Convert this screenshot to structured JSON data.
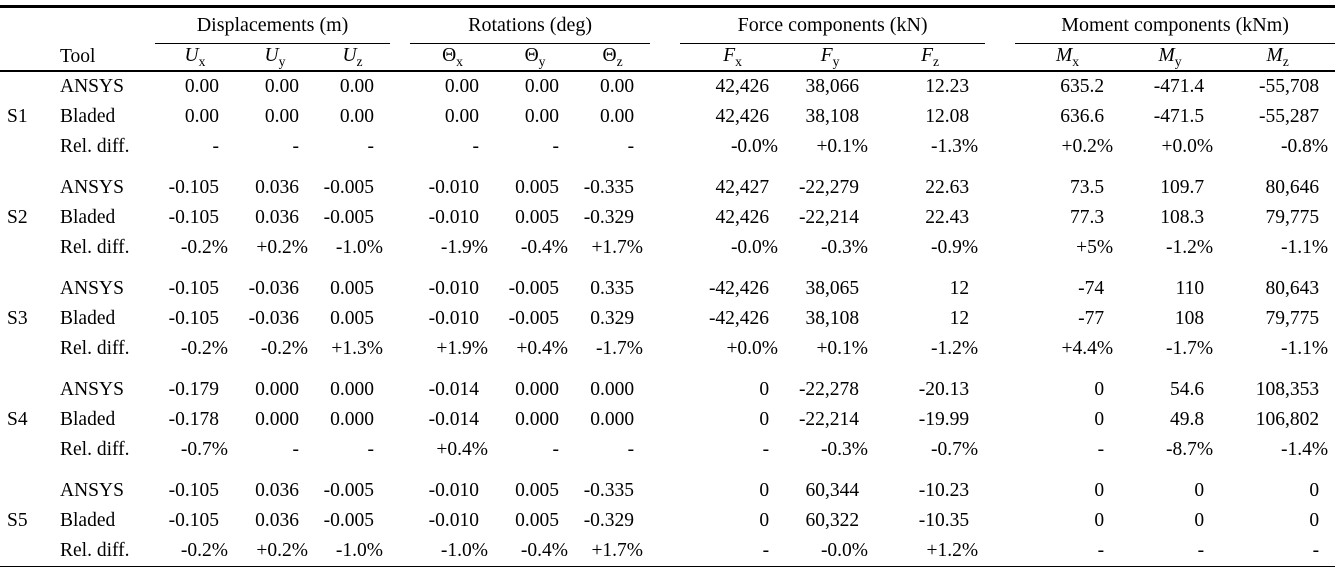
{
  "colors": {
    "text": "#000000",
    "background": "#ffffff",
    "rule": "#000000"
  },
  "table": {
    "tool_header": "Tool",
    "groups": [
      {
        "label": "Displacements (m)"
      },
      {
        "label": "Rotations (deg)"
      },
      {
        "label": "Force components (kN)"
      },
      {
        "label": "Moment components (kNm)"
      }
    ],
    "col_headers": [
      {
        "name": "ux",
        "base": "U",
        "sub": "x",
        "italic": true
      },
      {
        "name": "uy",
        "base": "U",
        "sub": "y",
        "italic": true
      },
      {
        "name": "uz",
        "base": "U",
        "sub": "z",
        "italic": true
      },
      {
        "name": "theta-x",
        "base": "Θ",
        "sub": "x",
        "italic": false
      },
      {
        "name": "theta-y",
        "base": "Θ",
        "sub": "y",
        "italic": false
      },
      {
        "name": "theta-z",
        "base": "Θ",
        "sub": "z",
        "italic": false
      },
      {
        "name": "fx",
        "base": "F",
        "sub": "x",
        "italic": true
      },
      {
        "name": "fy",
        "base": "F",
        "sub": "y",
        "italic": true
      },
      {
        "name": "fz",
        "base": "F",
        "sub": "z",
        "italic": true
      },
      {
        "name": "mx",
        "base": "M",
        "sub": "x",
        "italic": true
      },
      {
        "name": "my",
        "base": "M",
        "sub": "y",
        "italic": true
      },
      {
        "name": "mz",
        "base": "M",
        "sub": "z",
        "italic": true
      }
    ],
    "sections": [
      {
        "id": "S1",
        "rows": [
          {
            "tool": "ANSYS",
            "values": [
              "0.00",
              "0.00",
              "0.00",
              "0.00",
              "0.00",
              "0.00",
              "42,426",
              "38,066",
              "12.23",
              "635.2",
              "-471.4",
              "-55,708"
            ]
          },
          {
            "tool": "Bladed",
            "values": [
              "0.00",
              "0.00",
              "0.00",
              "0.00",
              "0.00",
              "0.00",
              "42,426",
              "38,108",
              "12.08",
              "636.6",
              "-471.5",
              "-55,287"
            ]
          },
          {
            "tool": "Rel. diff.",
            "values": [
              "-",
              "-",
              "-",
              "-",
              "-",
              "-",
              "-0.0%",
              "+0.1%",
              "-1.3%",
              "+0.2%",
              "+0.0%",
              "-0.8%"
            ]
          }
        ]
      },
      {
        "id": "S2",
        "rows": [
          {
            "tool": "ANSYS",
            "values": [
              "-0.105",
              "0.036",
              "-0.005",
              "-0.010",
              "0.005",
              "-0.335",
              "42,427",
              "-22,279",
              "22.63",
              "73.5",
              "109.7",
              "80,646"
            ]
          },
          {
            "tool": "Bladed",
            "values": [
              "-0.105",
              "0.036",
              "-0.005",
              "-0.010",
              "0.005",
              "-0.329",
              "42,426",
              "-22,214",
              "22.43",
              "77.3",
              "108.3",
              "79,775"
            ]
          },
          {
            "tool": "Rel. diff.",
            "values": [
              "-0.2%",
              "+0.2%",
              "-1.0%",
              "-1.9%",
              "-0.4%",
              "+1.7%",
              "-0.0%",
              "-0.3%",
              "-0.9%",
              "+5%",
              "-1.2%",
              "-1.1%"
            ]
          }
        ]
      },
      {
        "id": "S3",
        "rows": [
          {
            "tool": "ANSYS",
            "values": [
              "-0.105",
              "-0.036",
              "0.005",
              "-0.010",
              "-0.005",
              "0.335",
              "-42,426",
              "38,065",
              "12",
              "-74",
              "110",
              "80,643"
            ]
          },
          {
            "tool": "Bladed",
            "values": [
              "-0.105",
              "-0.036",
              "0.005",
              "-0.010",
              "-0.005",
              "0.329",
              "-42,426",
              "38,108",
              "12",
              "-77",
              "108",
              "79,775"
            ]
          },
          {
            "tool": "Rel. diff.",
            "values": [
              "-0.2%",
              "-0.2%",
              "+1.3%",
              "+1.9%",
              "+0.4%",
              "-1.7%",
              "+0.0%",
              "+0.1%",
              "-1.2%",
              "+4.4%",
              "-1.7%",
              "-1.1%"
            ]
          }
        ]
      },
      {
        "id": "S4",
        "rows": [
          {
            "tool": "ANSYS",
            "values": [
              "-0.179",
              "0.000",
              "0.000",
              "-0.014",
              "0.000",
              "0.000",
              "0",
              "-22,278",
              "-20.13",
              "0",
              "54.6",
              "108,353"
            ]
          },
          {
            "tool": "Bladed",
            "values": [
              "-0.178",
              "0.000",
              "0.000",
              "-0.014",
              "0.000",
              "0.000",
              "0",
              "-22,214",
              "-19.99",
              "0",
              "49.8",
              "106,802"
            ]
          },
          {
            "tool": "Rel. diff.",
            "values": [
              "-0.7%",
              "-",
              "-",
              "+0.4%",
              "-",
              "-",
              "-",
              "-0.3%",
              "-0.7%",
              "-",
              "-8.7%",
              "-1.4%"
            ]
          }
        ]
      },
      {
        "id": "S5",
        "rows": [
          {
            "tool": "ANSYS",
            "values": [
              "-0.105",
              "0.036",
              "-0.005",
              "-0.010",
              "0.005",
              "-0.335",
              "0",
              "60,344",
              "-10.23",
              "0",
              "0",
              "0"
            ]
          },
          {
            "tool": "Bladed",
            "values": [
              "-0.105",
              "0.036",
              "-0.005",
              "-0.010",
              "0.005",
              "-0.329",
              "0",
              "60,322",
              "-10.35",
              "0",
              "0",
              "0"
            ]
          },
          {
            "tool": "Rel. diff.",
            "values": [
              "-0.2%",
              "+0.2%",
              "-1.0%",
              "-1.0%",
              "-0.4%",
              "+1.7%",
              "-",
              "-0.0%",
              "+1.2%",
              "-",
              "-",
              "-"
            ]
          }
        ]
      }
    ]
  }
}
